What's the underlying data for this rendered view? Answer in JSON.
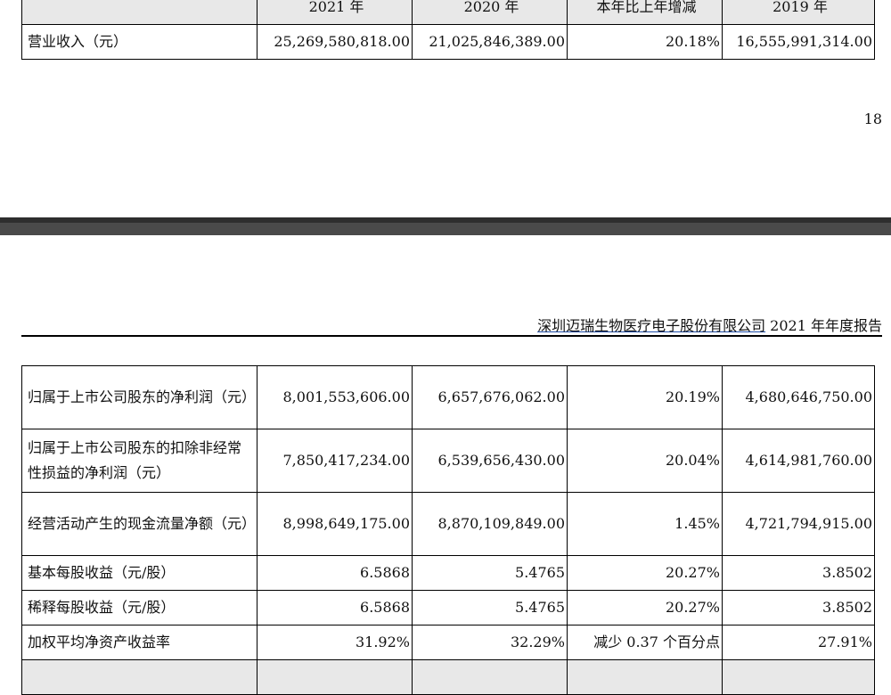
{
  "top_table": {
    "headers": [
      "2021 年",
      "2020 年",
      "本年比上年增减",
      "2019 年"
    ],
    "row": {
      "label": "营业收入（元）",
      "values": [
        "25,269,580,818.00",
        "21,025,846,389.00",
        "20.18%",
        "16,555,991,314.00"
      ]
    }
  },
  "page_number": "18",
  "running_header": {
    "company": "深圳迈瑞生物医疗电子股份有限公司",
    "suffix": " 2021 年年度报告"
  },
  "main_table": {
    "rows": [
      {
        "label": "归属于上市公司股东的净利润（元）",
        "values": [
          "8,001,553,606.00",
          "6,657,676,062.00",
          "20.19%",
          "4,680,646,750.00"
        ]
      },
      {
        "label": "归属于上市公司股东的扣除非经常性损益的净利润（元）",
        "values": [
          "7,850,417,234.00",
          "6,539,656,430.00",
          "20.04%",
          "4,614,981,760.00"
        ]
      },
      {
        "label": "经营活动产生的现金流量净额（元）",
        "values": [
          "8,998,649,175.00",
          "8,870,109,849.00",
          "1.45%",
          "4,721,794,915.00"
        ]
      },
      {
        "label": "基本每股收益（元/股）",
        "values": [
          "6.5868",
          "5.4765",
          "20.27%",
          "3.8502"
        ]
      },
      {
        "label": "稀释每股收益（元/股）",
        "values": [
          "6.5868",
          "5.4765",
          "20.27%",
          "3.8502"
        ]
      },
      {
        "label": "加权平均净资产收益率",
        "values": [
          "31.92%",
          "32.29%",
          "减少 0.37 个百分点",
          "27.91%"
        ]
      }
    ]
  }
}
